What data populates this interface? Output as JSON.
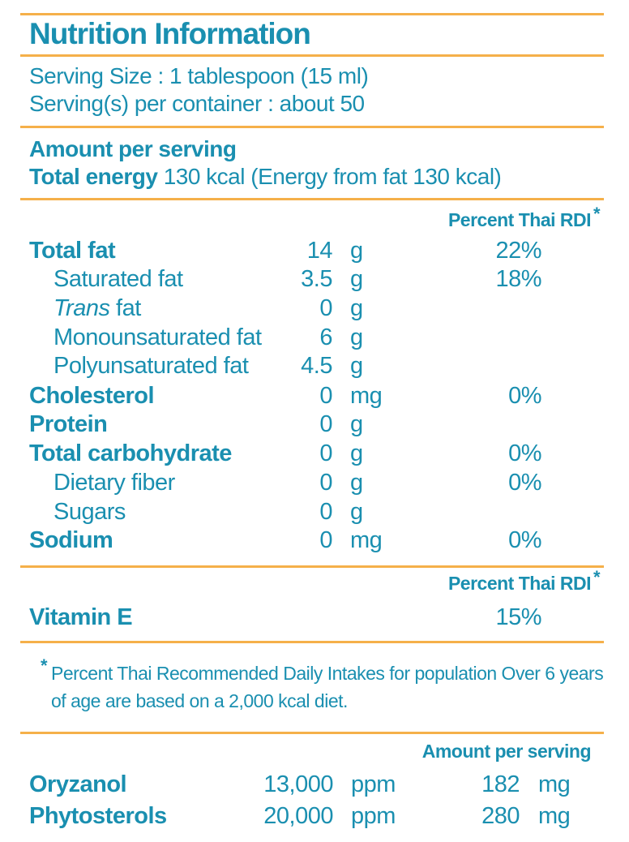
{
  "title": "Nutrition Information",
  "serving_size": "Serving Size : 1 tablespoon (15 ml)",
  "servings_per_container": "Serving(s) per container : about 50",
  "amount_per_serving": "Amount per serving",
  "total_energy_label": "Total energy",
  "total_energy_value": "130 kcal (Energy from fat 130 kcal)",
  "rdi_header": "Percent Thai RDI",
  "asterisk": "*",
  "nutrients": [
    {
      "name": "Total fat",
      "amount": "14",
      "unit": "g",
      "rdi": "22%"
    },
    {
      "name": "Saturated fat",
      "amount": "3.5",
      "unit": "g",
      "rdi": "18%"
    },
    {
      "name_italic": "Trans",
      "name_rest": " fat",
      "amount": "0",
      "unit": "g",
      "rdi": ""
    },
    {
      "name": "Monounsaturated fat",
      "amount": "6",
      "unit": "g",
      "rdi": ""
    },
    {
      "name": "Polyunsaturated fat",
      "amount": "4.5",
      "unit": "g",
      "rdi": ""
    },
    {
      "name": "Cholesterol",
      "amount": "0",
      "unit": "mg",
      "rdi": "0%"
    },
    {
      "name": "Protein",
      "amount": "0",
      "unit": "g",
      "rdi": ""
    },
    {
      "name": "Total carbohydrate",
      "amount": "0",
      "unit": "g",
      "rdi": "0%"
    },
    {
      "name": "Dietary fiber",
      "amount": "0",
      "unit": "g",
      "rdi": "0%"
    },
    {
      "name": "Sugars",
      "amount": "0",
      "unit": "g",
      "rdi": ""
    },
    {
      "name": "Sodium",
      "amount": "0",
      "unit": "mg",
      "rdi": "0%"
    }
  ],
  "vitamin": {
    "name": "Vitamin E",
    "rdi": "15%"
  },
  "footnote": "Percent Thai Recommended Daily Intakes for population Over 6 years of age are based on a 2,000 kcal diet.",
  "extras_header": "Amount per serving",
  "extras": [
    {
      "name": "Oryzanol",
      "ppm": "13,000",
      "ppm_unit": "ppm",
      "amount": "182",
      "unit": "mg"
    },
    {
      "name": "Phytosterols",
      "ppm": "20,000",
      "ppm_unit": "ppm",
      "amount": "280",
      "unit": "mg"
    }
  ],
  "colors": {
    "text": "#1a8fb0",
    "rule": "#f5b04a"
  }
}
